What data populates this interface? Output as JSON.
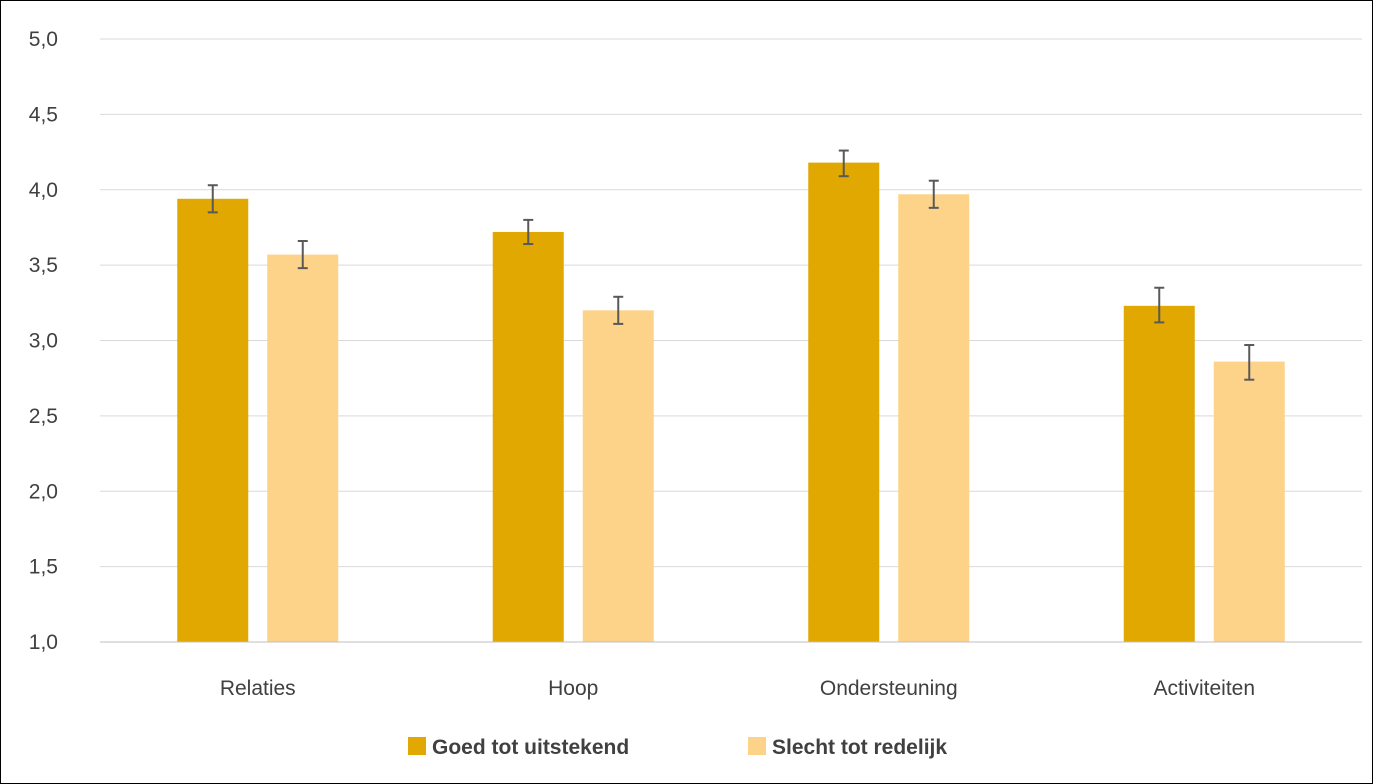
{
  "chart_data": {
    "type": "bar",
    "categories": [
      "Relaties",
      "Hoop",
      "Ondersteuning",
      "Activiteiten"
    ],
    "series": [
      {
        "name": "Goed tot uitstekend",
        "color": "#E0A800",
        "values": [
          3.94,
          3.72,
          4.18,
          3.23
        ],
        "error_low": [
          3.85,
          3.64,
          4.09,
          3.12
        ],
        "error_high": [
          4.03,
          3.8,
          4.26,
          3.35
        ]
      },
      {
        "name": "Slecht tot redelijk",
        "color": "#FDD38A",
        "values": [
          3.57,
          3.2,
          3.97,
          2.86
        ],
        "error_low": [
          3.48,
          3.11,
          3.88,
          2.74
        ],
        "error_high": [
          3.66,
          3.29,
          4.06,
          2.97
        ]
      }
    ],
    "y_ticks": [
      "1,0",
      "1,5",
      "2,0",
      "2,5",
      "3,0",
      "3,5",
      "4,0",
      "4,5",
      "5,0"
    ],
    "ylim": [
      1.0,
      5.0
    ],
    "grid": true,
    "legend_position": "bottom",
    "colors": {
      "grid": "#D9D9D9",
      "axis": "#BFBFBF",
      "error_bar": "#595959",
      "text": "#404040"
    }
  }
}
